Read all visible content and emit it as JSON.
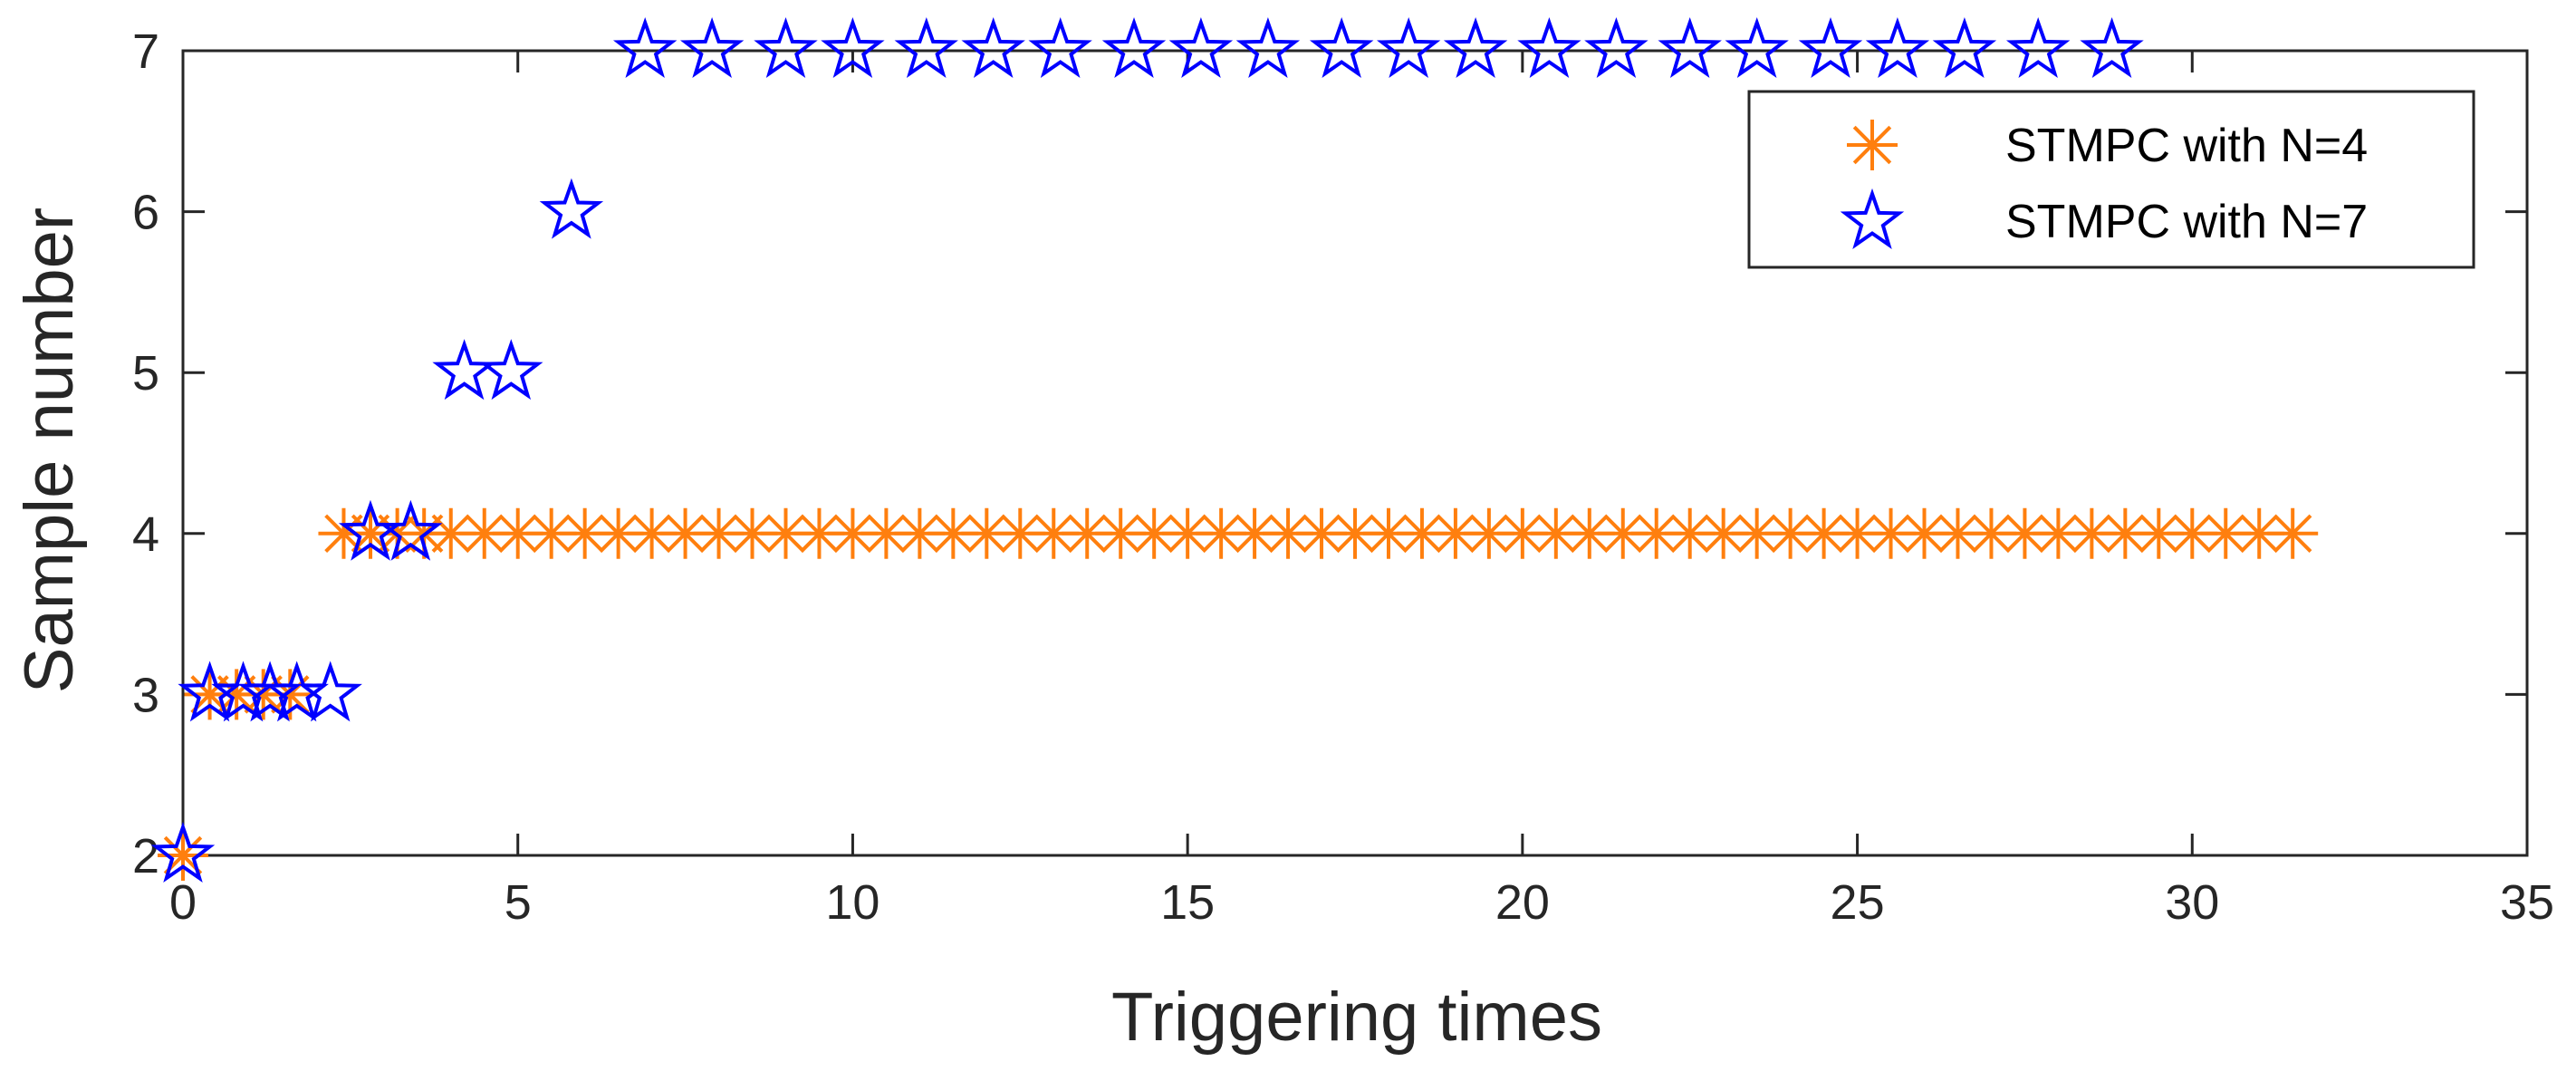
{
  "chart_data": {
    "type": "scatter",
    "xlabel": "Triggering times",
    "ylabel": "Sample number",
    "xlim": [
      0,
      35
    ],
    "ylim": [
      2,
      7
    ],
    "xticks": [
      0,
      5,
      10,
      15,
      20,
      25,
      30,
      35
    ],
    "yticks": [
      2,
      3,
      4,
      5,
      6,
      7
    ],
    "grid": false,
    "legend_position": "top-right",
    "series": [
      {
        "name": "STMPC with N=4",
        "marker": "asterisk",
        "color": "#ff7f0e",
        "x": [
          0,
          0.4,
          0.8,
          1.2,
          1.6,
          2.4,
          2.8,
          3.2,
          3.6,
          4.0,
          4.5,
          5.0,
          5.5,
          6.0,
          6.5,
          7.0,
          7.5,
          8.0,
          8.5,
          9.0,
          9.5,
          10.0,
          10.5,
          11.0,
          11.5,
          12.0,
          12.5,
          13.0,
          13.5,
          14.0,
          14.5,
          15.0,
          15.5,
          16.0,
          16.5,
          17.0,
          17.5,
          18.0,
          18.5,
          19.0,
          19.5,
          20.0,
          20.5,
          21.0,
          21.5,
          22.0,
          22.5,
          23.0,
          23.5,
          24.0,
          24.5,
          25.0,
          25.5,
          26.0,
          26.5,
          27.0,
          27.5,
          28.0,
          28.5,
          29.0,
          29.5,
          30.0,
          30.5,
          31.0,
          31.5
        ],
        "y": [
          2,
          3,
          3,
          3,
          3,
          4,
          4,
          4,
          4,
          4,
          4,
          4,
          4,
          4,
          4,
          4,
          4,
          4,
          4,
          4,
          4,
          4,
          4,
          4,
          4,
          4,
          4,
          4,
          4,
          4,
          4,
          4,
          4,
          4,
          4,
          4,
          4,
          4,
          4,
          4,
          4,
          4,
          4,
          4,
          4,
          4,
          4,
          4,
          4,
          4,
          4,
          4,
          4,
          4,
          4,
          4,
          4,
          4,
          4,
          4,
          4,
          4,
          4,
          4,
          4
        ]
      },
      {
        "name": "STMPC with N=7",
        "marker": "pentagram",
        "color": "#0000ff",
        "x": [
          0,
          0.4,
          0.9,
          1.3,
          1.7,
          2.2,
          2.8,
          3.4,
          4.2,
          4.9,
          5.8,
          6.9,
          7.9,
          9.0,
          10.0,
          11.1,
          12.1,
          13.1,
          14.2,
          15.2,
          16.2,
          17.3,
          18.3,
          19.3,
          20.4,
          21.4,
          22.5,
          23.5,
          24.6,
          25.6,
          26.6,
          27.7,
          28.8
        ],
        "y": [
          2,
          3,
          3,
          3,
          3,
          3,
          4,
          4,
          5,
          5,
          6,
          7,
          7,
          7,
          7,
          7,
          7,
          7,
          7,
          7,
          7,
          7,
          7,
          7,
          7,
          7,
          7,
          7,
          7,
          7,
          7,
          7,
          7
        ]
      }
    ]
  }
}
